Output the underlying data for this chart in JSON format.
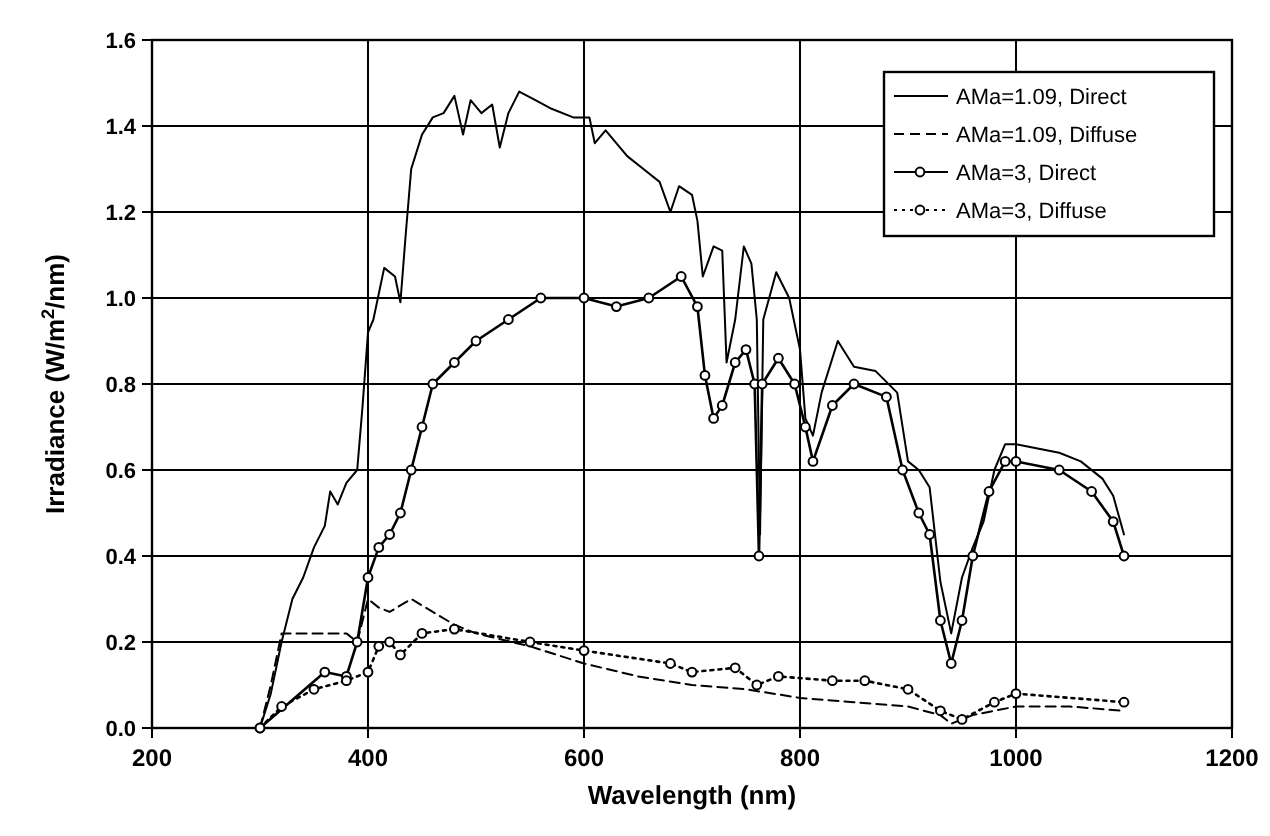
{
  "chart_data": {
    "type": "line",
    "xlabel": "Wavelength (nm)",
    "ylabel": "Irradiance (W/m$^{2}$/nm)",
    "xlim": [
      200,
      1200
    ],
    "xticks": [
      200,
      400,
      600,
      800,
      1000,
      1200
    ],
    "ylim": [
      0,
      1.6
    ],
    "yticks": [
      {
        "value": 0,
        "label": "0.0"
      },
      0.2,
      0.4,
      0.6,
      0.8,
      {
        "value": 1,
        "label": "1.0"
      },
      1.2,
      1.4,
      1.6
    ],
    "grid": true,
    "legend": "top right",
    "series": [
      {
        "name": "AMa=1.09, Direct",
        "color": "#000000",
        "marker": "none",
        "line_style": "solid",
        "x": [
          300,
          310,
          320,
          330,
          340,
          350,
          360,
          365,
          372,
          380,
          390,
          395,
          400,
          405,
          415,
          425,
          430,
          435,
          440,
          450,
          460,
          470,
          480,
          488,
          495,
          505,
          515,
          522,
          530,
          540,
          555,
          570,
          590,
          605,
          610,
          620,
          640,
          655,
          670,
          680,
          688,
          700,
          705,
          710,
          720,
          728,
          732,
          740,
          748,
          755,
          760,
          763,
          766,
          778,
          790,
          800,
          805,
          812,
          820,
          835,
          850,
          870,
          890,
          900,
          910,
          920,
          930,
          940,
          950,
          960,
          970,
          980,
          990,
          1000,
          1020,
          1040,
          1060,
          1080,
          1090,
          1100
        ],
        "values": [
          0,
          0.08,
          0.2,
          0.3,
          0.35,
          0.42,
          0.47,
          0.55,
          0.52,
          0.57,
          0.6,
          0.75,
          0.92,
          0.95,
          1.07,
          1.05,
          0.99,
          1.15,
          1.3,
          1.38,
          1.42,
          1.43,
          1.47,
          1.38,
          1.46,
          1.43,
          1.45,
          1.35,
          1.43,
          1.48,
          1.46,
          1.44,
          1.42,
          1.42,
          1.36,
          1.39,
          1.33,
          1.3,
          1.27,
          1.2,
          1.26,
          1.24,
          1.18,
          1.05,
          1.12,
          1.11,
          0.85,
          0.95,
          1.12,
          1.08,
          0.95,
          0.45,
          0.95,
          1.06,
          1.0,
          0.88,
          0.72,
          0.68,
          0.78,
          0.9,
          0.84,
          0.83,
          0.78,
          0.62,
          0.6,
          0.56,
          0.34,
          0.22,
          0.35,
          0.42,
          0.48,
          0.6,
          0.66,
          0.66,
          0.65,
          0.64,
          0.62,
          0.58,
          0.54,
          0.45
        ]
      },
      {
        "name": "AMa=1.09, Diffuse",
        "color": "#000000",
        "marker": "none",
        "line_style": "dashed",
        "x": [
          300,
          310,
          320,
          340,
          360,
          380,
          390,
          400,
          410,
          420,
          440,
          460,
          480,
          500,
          550,
          600,
          650,
          700,
          750,
          800,
          850,
          900,
          930,
          940,
          960,
          1000,
          1050,
          1100
        ],
        "values": [
          0,
          0.1,
          0.22,
          0.22,
          0.22,
          0.22,
          0.2,
          0.3,
          0.28,
          0.27,
          0.3,
          0.27,
          0.24,
          0.22,
          0.19,
          0.15,
          0.12,
          0.1,
          0.09,
          0.07,
          0.06,
          0.05,
          0.03,
          0.01,
          0.03,
          0.05,
          0.05,
          0.04
        ]
      },
      {
        "name": "AMa=3, Direct",
        "color": "#000000",
        "marker": "circle",
        "line_style": "solid",
        "x": [
          300,
          360,
          380,
          390,
          400,
          410,
          420,
          430,
          440,
          450,
          460,
          480,
          500,
          530,
          560,
          600,
          630,
          660,
          690,
          705,
          712,
          720,
          728,
          740,
          750,
          758,
          762,
          765,
          780,
          795,
          805,
          812,
          830,
          850,
          880,
          895,
          910,
          920,
          930,
          940,
          950,
          960,
          975,
          990,
          1000,
          1040,
          1070,
          1090,
          1100
        ],
        "values": [
          0,
          0.13,
          0.12,
          0.2,
          0.35,
          0.42,
          0.45,
          0.5,
          0.6,
          0.7,
          0.8,
          0.85,
          0.9,
          0.95,
          1.0,
          1.0,
          0.98,
          1.0,
          1.05,
          0.98,
          0.82,
          0.72,
          0.75,
          0.85,
          0.88,
          0.8,
          0.4,
          0.8,
          0.86,
          0.8,
          0.7,
          0.62,
          0.75,
          0.8,
          0.77,
          0.6,
          0.5,
          0.45,
          0.25,
          0.15,
          0.25,
          0.4,
          0.55,
          0.62,
          0.62,
          0.6,
          0.55,
          0.48,
          0.4
        ]
      },
      {
        "name": "AMa=3, Diffuse",
        "color": "#000000",
        "marker": "circle",
        "line_style": "dotted",
        "x": [
          300,
          320,
          350,
          380,
          400,
          410,
          420,
          430,
          450,
          480,
          550,
          600,
          680,
          700,
          740,
          760,
          780,
          830,
          860,
          900,
          930,
          950,
          980,
          1000,
          1100
        ],
        "values": [
          0,
          0.05,
          0.09,
          0.11,
          0.13,
          0.19,
          0.2,
          0.17,
          0.22,
          0.23,
          0.2,
          0.18,
          0.15,
          0.13,
          0.14,
          0.1,
          0.12,
          0.11,
          0.11,
          0.09,
          0.04,
          0.02,
          0.06,
          0.08,
          0.06
        ]
      }
    ]
  }
}
